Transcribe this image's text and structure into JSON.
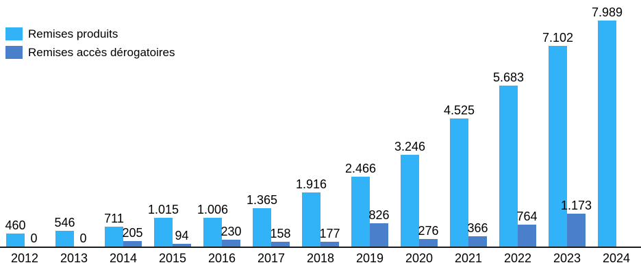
{
  "legend": {
    "items": [
      {
        "label": "Remises produits",
        "color": "#33B3F7"
      },
      {
        "label": "Remises accès dérogatoires",
        "color": "#4A7FCB"
      }
    ]
  },
  "chart_data": {
    "type": "bar",
    "categories": [
      "2012",
      "2013",
      "2014",
      "2015",
      "2016",
      "2017",
      "2018",
      "2019",
      "2020",
      "2021",
      "2022",
      "2023",
      "2024"
    ],
    "series": [
      {
        "name": "Remises produits",
        "color": "#33B3F7",
        "values": [
          460,
          546,
          711,
          1015,
          1006,
          1365,
          1916,
          2466,
          3246,
          4525,
          5683,
          7102,
          7989
        ],
        "labels": [
          "460",
          "546",
          "711",
          "1.015",
          "1.006",
          "1.365",
          "1.916",
          "2.466",
          "3.246",
          "4.525",
          "5.683",
          "7.102",
          "7.989"
        ]
      },
      {
        "name": "Remises accès dérogatoires",
        "color": "#4A7FCB",
        "values": [
          0,
          0,
          205,
          94,
          230,
          158,
          177,
          826,
          276,
          366,
          764,
          1173,
          null
        ],
        "labels": [
          "0",
          "0",
          "205",
          "94",
          "230",
          "158",
          "177",
          "826",
          "276",
          "366",
          "764",
          "1.173",
          null
        ]
      }
    ],
    "title": "",
    "xlabel": "",
    "ylabel": "",
    "ylim": [
      0,
      8000
    ],
    "grid": false,
    "legend_position": "top-left",
    "value_label_format": "thousands-dot",
    "axis_line_color": "#1a1a1a"
  }
}
